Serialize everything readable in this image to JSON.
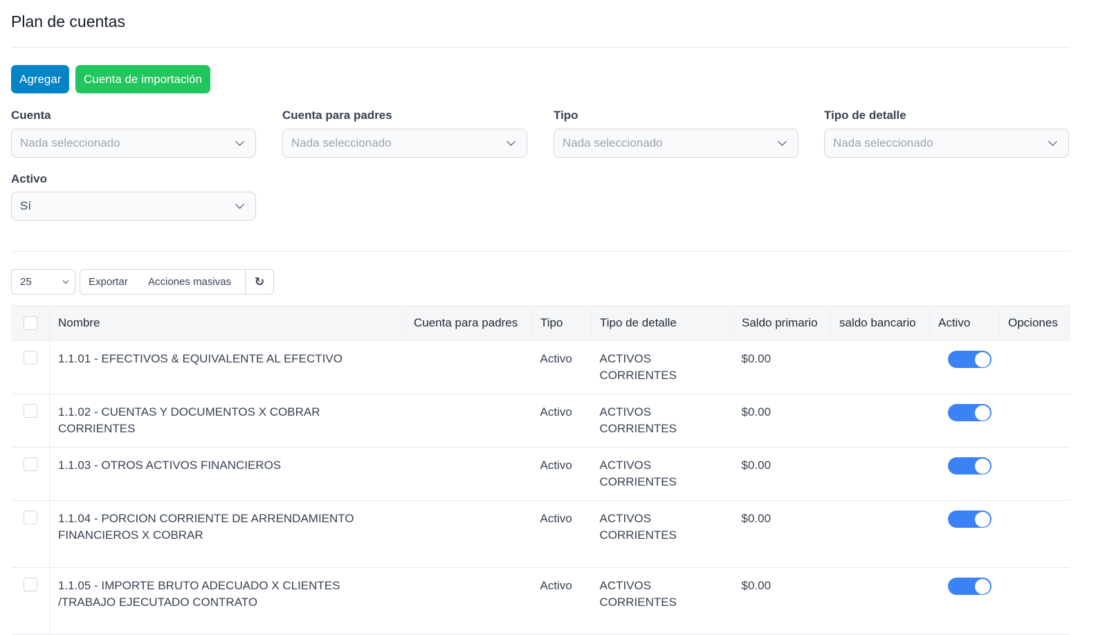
{
  "page": {
    "title": "Plan de cuentas"
  },
  "actions": {
    "add": "Agregar",
    "import": "Cuenta de importación"
  },
  "filters": [
    {
      "label": "Cuenta",
      "value": "Nada seleccionado"
    },
    {
      "label": "Cuenta para padres",
      "value": "Nada seleccionado"
    },
    {
      "label": "Tipo",
      "value": "Nada seleccionado"
    },
    {
      "label": "Tipo de detalle",
      "value": "Nada seleccionado"
    },
    {
      "label": "Activo",
      "value": "Sí"
    }
  ],
  "toolbar": {
    "page_size": "25",
    "export": "Exportar",
    "bulk": "Acciones masivas",
    "refresh_icon": "refresh-icon"
  },
  "colors": {
    "primary": "#0284c7",
    "success": "#22c55e",
    "toggle": "#3b82f6"
  },
  "table": {
    "headers": [
      "Nombre",
      "Cuenta para padres",
      "Tipo",
      "Tipo de detalle",
      "Saldo primario",
      "saldo bancario",
      "Activo",
      "Opciones"
    ],
    "rows": [
      {
        "nombre": "1.1.01 - EFECTIVOS & EQUIVALENTE AL EFECTIVO",
        "padre": "",
        "tipo": "Activo",
        "detalle": "ACTIVOS CORRIENTES",
        "saldo": "$0.00",
        "banco": "",
        "activo": true
      },
      {
        "nombre": "1.1.02 - CUENTAS Y DOCUMENTOS X COBRAR CORRIENTES",
        "padre": "",
        "tipo": "Activo",
        "detalle": "ACTIVOS CORRIENTES",
        "saldo": "$0.00",
        "banco": "",
        "activo": true
      },
      {
        "nombre": "1.1.03 - OTROS ACTIVOS FINANCIEROS",
        "padre": "",
        "tipo": "Activo",
        "detalle": "ACTIVOS CORRIENTES",
        "saldo": "$0.00",
        "banco": "",
        "activo": true
      },
      {
        "nombre": "1.1.04 - PORCION CORRIENTE DE ARRENDAMIENTO FINANCIEROS X COBRAR",
        "padre": "",
        "tipo": "Activo",
        "detalle": "ACTIVOS CORRIENTES",
        "saldo": "$0.00",
        "banco": "",
        "activo": true
      },
      {
        "nombre": "1.1.05 - IMPORTE BRUTO ADECUADO X CLIENTES /TRABAJO EJECUTADO CONTRATO",
        "padre": "",
        "tipo": "Activo",
        "detalle": "ACTIVOS CORRIENTES",
        "saldo": "$0.00",
        "banco": "",
        "activo": true
      }
    ]
  }
}
